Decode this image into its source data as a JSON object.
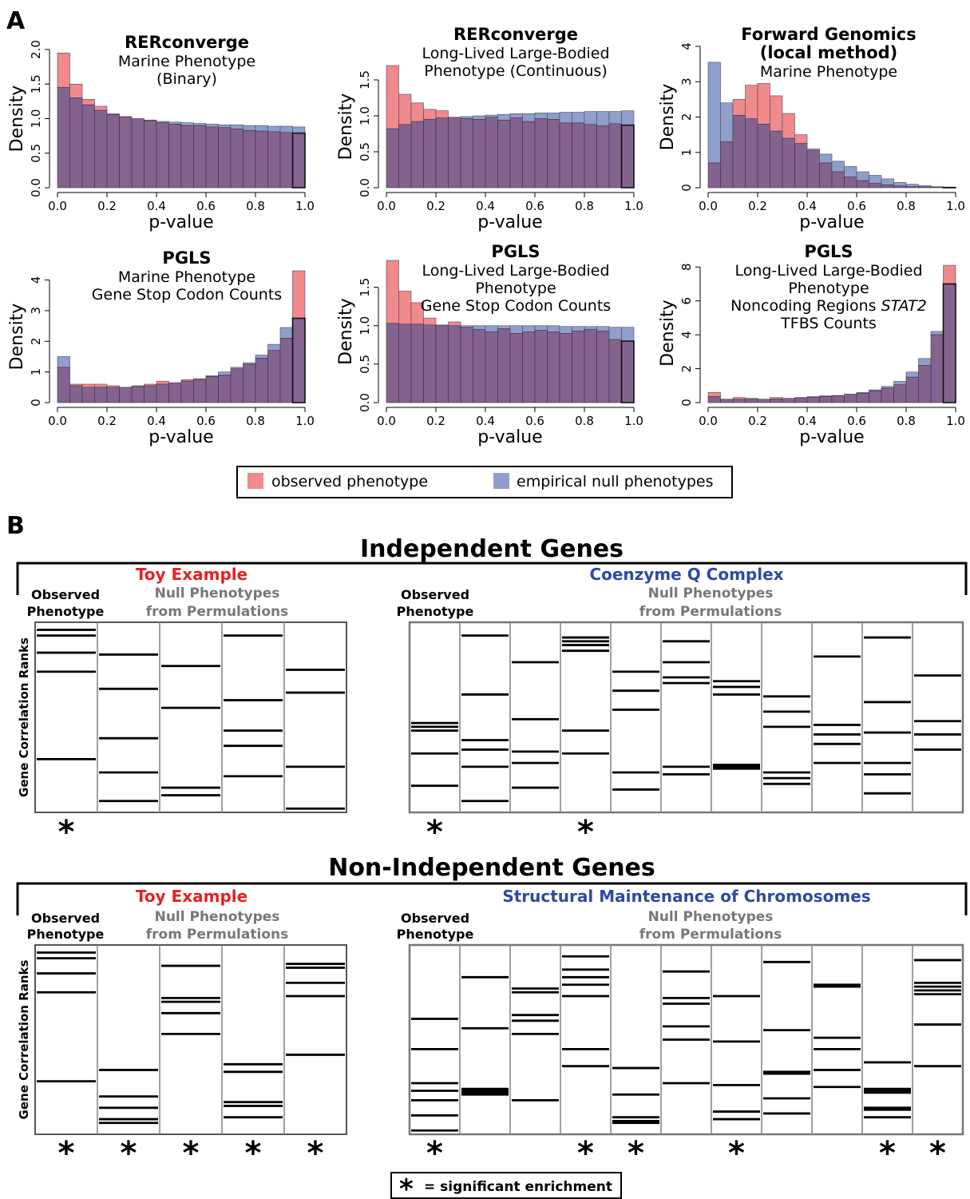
{
  "panel_a_label": "A",
  "panel_b_label": "B",
  "legend": {
    "observed": {
      "label": "observed phenotype",
      "color": "#f08a8c"
    },
    "null": {
      "label": "empirical null phenotypes",
      "color": "#8f9fcc"
    },
    "overlap_color": "#85638f"
  },
  "chart_data": [
    {
      "type": "bar",
      "subtype": "overlaid-histogram",
      "title_bold": [
        "RERconverge"
      ],
      "title_lines": [
        "Marine Phenotype",
        "(Binary)"
      ],
      "xlabel": "p-value",
      "ylabel": "Density",
      "xlim": [
        0,
        1
      ],
      "ylim": [
        0,
        2.0
      ],
      "xticks": [
        "0.0",
        "0.2",
        "0.4",
        "0.6",
        "0.8",
        "1.0"
      ],
      "yticks": [
        "0.0",
        "0.5",
        "1.0",
        "1.5",
        "2.0"
      ],
      "ytick_values": [
        0,
        0.5,
        1.0,
        1.5,
        2.0
      ],
      "bin_width": 0.05,
      "series": [
        {
          "name": "observed phenotype",
          "values": [
            1.95,
            1.5,
            1.28,
            1.18,
            1.07,
            1.03,
            1.0,
            0.97,
            0.94,
            0.92,
            0.9,
            0.9,
            0.88,
            0.87,
            0.85,
            0.83,
            0.82,
            0.81,
            0.8,
            0.79
          ]
        },
        {
          "name": "empirical null phenotypes",
          "values": [
            1.45,
            1.3,
            1.2,
            1.12,
            1.06,
            1.02,
            1.0,
            0.98,
            0.96,
            0.95,
            0.94,
            0.93,
            0.92,
            0.91,
            0.91,
            0.9,
            0.9,
            0.89,
            0.89,
            0.88
          ]
        }
      ]
    },
    {
      "type": "bar",
      "subtype": "overlaid-histogram",
      "title_bold": [
        "RERconverge"
      ],
      "title_lines": [
        "Long-Lived Large-Bodied",
        "Phenotype (Continuous)"
      ],
      "xlabel": "p-value",
      "ylabel": "Density",
      "xlim": [
        0,
        1
      ],
      "ylim": [
        0,
        1.7
      ],
      "xticks": [
        "0.0",
        "0.2",
        "0.4",
        "0.6",
        "0.8",
        "1.0"
      ],
      "yticks": [
        "0.0",
        "0.5",
        "1.0",
        "1.5"
      ],
      "ytick_values": [
        0,
        0.5,
        1.0,
        1.5
      ],
      "bin_width": 0.05,
      "series": [
        {
          "name": "observed phenotype",
          "values": [
            1.7,
            1.3,
            1.18,
            1.09,
            1.07,
            0.98,
            0.96,
            0.95,
            0.98,
            0.94,
            0.97,
            0.92,
            0.96,
            0.95,
            0.9,
            0.9,
            0.88,
            0.86,
            0.89,
            0.87
          ]
        },
        {
          "name": "empirical null phenotypes",
          "values": [
            0.82,
            0.88,
            0.92,
            0.95,
            0.97,
            0.98,
            0.99,
            1.0,
            1.01,
            1.02,
            1.03,
            1.03,
            1.04,
            1.04,
            1.05,
            1.05,
            1.06,
            1.06,
            1.06,
            1.07
          ]
        }
      ]
    },
    {
      "type": "bar",
      "subtype": "overlaid-histogram",
      "title_bold": [
        "Forward Genomics",
        "(local method)"
      ],
      "title_lines": [
        "Marine Phenotype"
      ],
      "xlabel": "p-value",
      "ylabel": "Density",
      "xlim": [
        0,
        1
      ],
      "ylim": [
        0,
        4
      ],
      "xticks": [
        "0.0",
        "0.2",
        "0.4",
        "0.6",
        "0.8",
        "1.0"
      ],
      "yticks": [
        "0",
        "1",
        "2",
        "3",
        "4"
      ],
      "ytick_values": [
        0,
        1,
        2,
        3,
        4
      ],
      "bin_width": 0.05,
      "series": [
        {
          "name": "observed phenotype",
          "values": [
            0.7,
            1.3,
            2.5,
            2.9,
            2.95,
            2.6,
            2.1,
            1.5,
            1.05,
            0.7,
            0.45,
            0.3,
            0.2,
            0.12,
            0.08,
            0.05,
            0.03,
            0.02,
            0.01,
            0.005
          ]
        },
        {
          "name": "empirical null phenotypes",
          "values": [
            3.55,
            2.4,
            2.05,
            1.95,
            1.8,
            1.6,
            1.4,
            1.25,
            1.1,
            0.95,
            0.75,
            0.6,
            0.45,
            0.35,
            0.25,
            0.15,
            0.1,
            0.06,
            0.03,
            0.02
          ]
        }
      ]
    },
    {
      "type": "bar",
      "subtype": "overlaid-histogram",
      "title_bold": [
        "PGLS"
      ],
      "title_lines": [
        "Marine Phenotype",
        "Gene Stop Codon Counts"
      ],
      "xlabel": "p-value",
      "ylabel": "Density",
      "xlim": [
        0,
        1
      ],
      "ylim": [
        0,
        4.3
      ],
      "xticks": [
        "0.0",
        "0.2",
        "0.4",
        "0.6",
        "0.8",
        "1.0"
      ],
      "yticks": [
        "0",
        "1",
        "2",
        "3",
        "4"
      ],
      "ytick_values": [
        0,
        1,
        2,
        3,
        4
      ],
      "bin_width": 0.05,
      "series": [
        {
          "name": "observed phenotype",
          "values": [
            1.15,
            0.6,
            0.6,
            0.6,
            0.55,
            0.5,
            0.55,
            0.6,
            0.7,
            0.65,
            0.75,
            0.75,
            0.85,
            0.9,
            1.1,
            1.25,
            1.45,
            1.7,
            2.1,
            4.3
          ]
        },
        {
          "name": "empirical null phenotypes",
          "values": [
            1.5,
            0.55,
            0.5,
            0.5,
            0.5,
            0.5,
            0.52,
            0.55,
            0.6,
            0.65,
            0.7,
            0.78,
            0.88,
            1.0,
            1.15,
            1.3,
            1.55,
            1.9,
            2.45,
            2.75
          ]
        }
      ]
    },
    {
      "type": "bar",
      "subtype": "overlaid-histogram",
      "title_bold": [
        "PGLS"
      ],
      "title_lines": [
        "Long-Lived Large-Bodied",
        "Phenotype",
        "Gene Stop Codon Counts"
      ],
      "xlabel": "p-value",
      "ylabel": "Density",
      "xlim": [
        0,
        1
      ],
      "ylim": [
        0,
        1.85
      ],
      "xticks": [
        "0.0",
        "0.2",
        "0.4",
        "0.6",
        "0.8",
        "1.0"
      ],
      "yticks": [
        "0.0",
        "0.5",
        "1.0",
        "1.5"
      ],
      "ytick_values": [
        0,
        0.5,
        1.0,
        1.5
      ],
      "bin_width": 0.05,
      "series": [
        {
          "name": "observed phenotype",
          "values": [
            1.85,
            1.45,
            1.3,
            1.1,
            1.0,
            1.05,
            0.98,
            0.95,
            0.92,
            0.96,
            0.9,
            0.92,
            0.94,
            0.92,
            0.9,
            0.93,
            0.95,
            0.93,
            0.82,
            0.8
          ]
        },
        {
          "name": "empirical null phenotypes",
          "values": [
            1.03,
            1.02,
            1.02,
            1.01,
            1.01,
            1.0,
            1.0,
            1.0,
            1.0,
            1.0,
            1.0,
            1.0,
            1.0,
            1.0,
            0.99,
            0.99,
            0.99,
            0.99,
            0.98,
            0.98
          ]
        }
      ]
    },
    {
      "type": "bar",
      "subtype": "overlaid-histogram",
      "title_bold": [
        "PGLS"
      ],
      "title_lines": [
        "Long-Lived Large-Bodied",
        "Phenotype",
        "Noncoding Regions STAT2",
        "TFBS Counts"
      ],
      "xlabel": "p-value",
      "ylabel": "Density",
      "xlim": [
        0,
        1
      ],
      "ylim": [
        0,
        8.2
      ],
      "xticks": [
        "0.0",
        "0.2",
        "0.4",
        "0.6",
        "0.8",
        "1.0"
      ],
      "yticks": [
        "0",
        "2",
        "4",
        "6",
        "8"
      ],
      "ytick_values": [
        0,
        2,
        4,
        6,
        8
      ],
      "bin_width": 0.05,
      "series": [
        {
          "name": "observed phenotype",
          "values": [
            0.6,
            0.2,
            0.3,
            0.25,
            0.2,
            0.3,
            0.25,
            0.3,
            0.35,
            0.4,
            0.4,
            0.5,
            0.55,
            0.7,
            0.85,
            1.05,
            1.5,
            2.2,
            4.0,
            8.1
          ]
        },
        {
          "name": "empirical null phenotypes",
          "values": [
            0.35,
            0.2,
            0.2,
            0.2,
            0.2,
            0.22,
            0.25,
            0.28,
            0.32,
            0.36,
            0.42,
            0.5,
            0.6,
            0.75,
            0.95,
            1.25,
            1.8,
            2.6,
            4.2,
            7.0
          ]
        }
      ]
    }
  ],
  "panel_b": {
    "independent": {
      "heading": "Independent Genes",
      "toy": {
        "title": "Toy Example",
        "title_color": "#e52222",
        "observed_label": [
          "Observed",
          "Phenotype"
        ],
        "null_label": [
          "Null Phenotypes",
          "from Permulations"
        ],
        "y_label": "Gene Correlation Ranks",
        "columns": [
          {
            "ranks": [
              0.04,
              0.07,
              0.16,
              0.26,
              0.72
            ],
            "significant": true
          },
          {
            "ranks": [
              0.17,
              0.35,
              0.61,
              0.79,
              0.94
            ],
            "significant": false
          },
          {
            "ranks": [
              0.23,
              0.45,
              0.87,
              0.91
            ],
            "significant": false
          },
          {
            "ranks": [
              0.07,
              0.41,
              0.57,
              0.65,
              0.81
            ],
            "significant": false
          },
          {
            "ranks": [
              0.25,
              0.37,
              0.76,
              0.98
            ],
            "significant": false
          }
        ]
      },
      "real": {
        "title": "Coenzyme Q Complex",
        "title_color": "#2f4aa0",
        "observed_label": [
          "Observed",
          "Phenotype"
        ],
        "null_label": [
          "Null Phenotypes",
          "from Permulations"
        ],
        "columns": [
          {
            "ranks": [
              0.53,
              0.55,
              0.57,
              0.69,
              0.86
            ],
            "significant": true
          },
          {
            "ranks": [
              0.07,
              0.38,
              0.62,
              0.67,
              0.76,
              0.94
            ],
            "significant": false
          },
          {
            "ranks": [
              0.21,
              0.51,
              0.68,
              0.74,
              0.87
            ],
            "significant": false
          },
          {
            "ranks": [
              0.08,
              0.1,
              0.12,
              0.15,
              0.57,
              0.69
            ],
            "significant": true
          },
          {
            "ranks": [
              0.26,
              0.36,
              0.46,
              0.79,
              0.88
            ],
            "significant": false
          },
          {
            "ranks": [
              0.1,
              0.21,
              0.29,
              0.32,
              0.76,
              0.8
            ],
            "significant": false
          },
          {
            "ranks": [
              0.31,
              0.34,
              0.38,
              0.75,
              0.76,
              0.77
            ],
            "significant": false
          },
          {
            "ranks": [
              0.39,
              0.47,
              0.55,
              0.79,
              0.82,
              0.85
            ],
            "significant": false
          },
          {
            "ranks": [
              0.18,
              0.54,
              0.59,
              0.64,
              0.74
            ],
            "significant": false
          },
          {
            "ranks": [
              0.08,
              0.42,
              0.58,
              0.74,
              0.8,
              0.9
            ],
            "significant": false
          },
          {
            "ranks": [
              0.28,
              0.52,
              0.59,
              0.67
            ],
            "significant": false
          }
        ]
      }
    },
    "nonindependent": {
      "heading": "Non-Independent Genes",
      "toy": {
        "title": "Toy Example",
        "title_color": "#e52222",
        "observed_label": [
          "Observed",
          "Phenotype"
        ],
        "null_label": [
          "Null Phenotypes",
          "from Permulations"
        ],
        "y_label": "Gene Correlation Ranks",
        "columns": [
          {
            "ranks": [
              0.04,
              0.07,
              0.15,
              0.25,
              0.72
            ],
            "significant": true
          },
          {
            "ranks": [
              0.66,
              0.8,
              0.86,
              0.92,
              0.94
            ],
            "significant": true
          },
          {
            "ranks": [
              0.11,
              0.28,
              0.3,
              0.36,
              0.47
            ],
            "significant": true
          },
          {
            "ranks": [
              0.63,
              0.67,
              0.83,
              0.85,
              0.91
            ],
            "significant": true
          },
          {
            "ranks": [
              0.1,
              0.12,
              0.2,
              0.27,
              0.58
            ],
            "significant": true
          }
        ]
      },
      "real": {
        "title": "Structural Maintenance of Chromosomes",
        "title_color": "#2f4aa0",
        "observed_label": [
          "Observed",
          "Phenotype"
        ],
        "null_label": [
          "Null Phenotypes",
          "from Permulations"
        ],
        "columns": [
          {
            "ranks": [
              0.39,
              0.55,
              0.73,
              0.77,
              0.82,
              0.9,
              0.98
            ],
            "significant": true
          },
          {
            "ranks": [
              0.17,
              0.44,
              0.76,
              0.77,
              0.78,
              0.79
            ],
            "significant": false
          },
          {
            "ranks": [
              0.23,
              0.25,
              0.37,
              0.4,
              0.47,
              0.82
            ],
            "significant": false
          },
          {
            "ranks": [
              0.06,
              0.13,
              0.17,
              0.21,
              0.27,
              0.55,
              0.64
            ],
            "significant": true
          },
          {
            "ranks": [
              0.65,
              0.79,
              0.91,
              0.93,
              0.94
            ],
            "significant": true
          },
          {
            "ranks": [
              0.14,
              0.28,
              0.31,
              0.43,
              0.5,
              0.73
            ],
            "significant": false
          },
          {
            "ranks": [
              0.27,
              0.51,
              0.74,
              0.88,
              0.92
            ],
            "significant": true
          },
          {
            "ranks": [
              0.09,
              0.45,
              0.67,
              0.68,
              0.81,
              0.89
            ],
            "significant": false
          },
          {
            "ranks": [
              0.21,
              0.22,
              0.49,
              0.55,
              0.66,
              0.75
            ],
            "significant": false
          },
          {
            "ranks": [
              0.62,
              0.76,
              0.77,
              0.78,
              0.86,
              0.87,
              0.91
            ],
            "significant": true
          },
          {
            "ranks": [
              0.08,
              0.2,
              0.22,
              0.24,
              0.26,
              0.42,
              0.64
            ],
            "significant": true
          }
        ]
      }
    },
    "footnote": {
      "symbol": "*",
      "text": "= significant enrichment"
    }
  }
}
